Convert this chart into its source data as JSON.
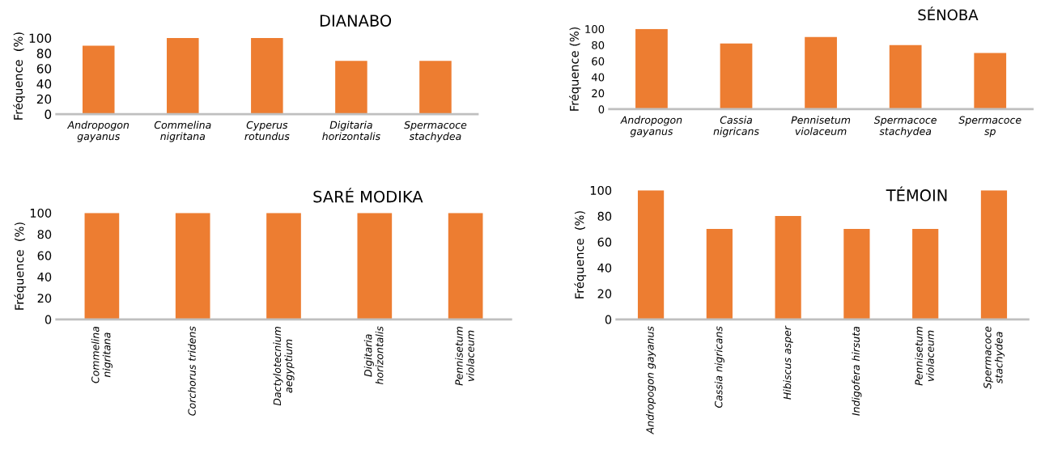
{
  "chart_data": [
    {
      "type": "bar",
      "title": "DIANABO",
      "ylabel": "Fréquence  (%)",
      "categories": [
        "Andropogon\ngayanus",
        "Commelina\nnigritana",
        "Cyperus\nrotundus",
        "Digitaria\nhorizontalis",
        "Spermacoce\nstachydea"
      ],
      "values": [
        90,
        100,
        100,
        70,
        70
      ],
      "color": "#ed7d31",
      "ylim": [
        0,
        100
      ],
      "yticks": [
        0,
        20,
        40,
        60,
        80,
        100
      ],
      "grid": false
    },
    {
      "type": "bar",
      "title": "SÉNOBA",
      "ylabel": "Fréquence (%)",
      "categories": [
        "Andropogon\ngayanus",
        "Cassia\nnigricans",
        "Pennisetum\nviolaceum",
        "Spermacoce\nstachydea",
        "Spermacoce\nsp"
      ],
      "values": [
        100,
        82,
        90,
        80,
        70
      ],
      "color": "#ed7d31",
      "ylim": [
        0,
        100
      ],
      "yticks": [
        0,
        20,
        40,
        60,
        80,
        100
      ],
      "grid": false
    },
    {
      "type": "bar",
      "title": "SARÉ MODIKA",
      "ylabel": "Fréquence  (%)",
      "categories": [
        "Commelina\nnigritana",
        "Corchorus tridens",
        "Dactylotecnium\naegyptium",
        "Digitaria\nhorizontalis",
        "Pennisetum\nviolaceum"
      ],
      "values": [
        100,
        100,
        100,
        100,
        100
      ],
      "color": "#ed7d31",
      "ylim": [
        0,
        100
      ],
      "yticks": [
        0,
        20,
        40,
        60,
        80,
        100
      ],
      "grid": false
    },
    {
      "type": "bar",
      "title": "TÉMOIN",
      "ylabel": "Fréquence  (%)",
      "categories": [
        "Andropogon gayanus",
        "Cassia nigricans",
        "Hibiscus asper",
        "Indigofera hirsuta",
        "Pennisetum\nviolaceum",
        "Spermacoce\nstachydea"
      ],
      "values": [
        100,
        70,
        80,
        70,
        70,
        100
      ],
      "color": "#ed7d31",
      "ylim": [
        0,
        100
      ],
      "yticks": [
        0,
        20,
        40,
        60,
        80,
        100
      ],
      "grid": false
    }
  ]
}
